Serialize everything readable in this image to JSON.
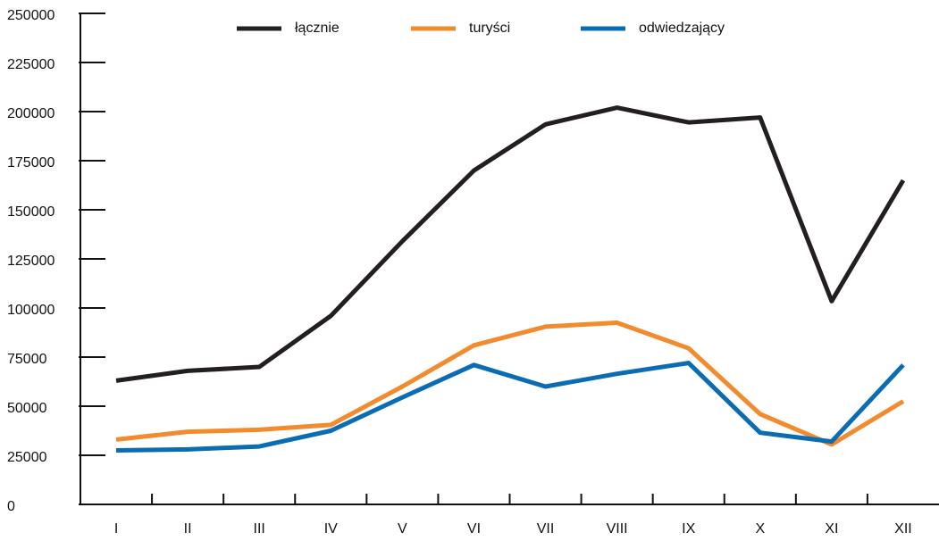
{
  "chart_data": {
    "type": "line",
    "categories": [
      "I",
      "II",
      "III",
      "IV",
      "V",
      "VI",
      "VII",
      "VIII",
      "IX",
      "X",
      "XI",
      "XII"
    ],
    "series": [
      {
        "name": "łącznie",
        "color": "#231f20",
        "values": [
          63000,
          68000,
          70000,
          96000,
          134000,
          170000,
          193500,
          202000,
          194500,
          197000,
          103500,
          165000
        ]
      },
      {
        "name": "turyści",
        "color": "#f28a2e",
        "values": [
          33000,
          37000,
          38000,
          40500,
          60000,
          81000,
          90500,
          92500,
          79500,
          46000,
          30500,
          52500
        ]
      },
      {
        "name": "odwiedzający",
        "color": "#0a6cb3",
        "values": [
          27500,
          28000,
          29500,
          37500,
          54500,
          71000,
          60000,
          66500,
          72000,
          36500,
          32000,
          71000
        ]
      }
    ],
    "ylim": [
      0,
      250000
    ],
    "yticks": [
      0,
      25000,
      50000,
      75000,
      100000,
      125000,
      150000,
      175000,
      200000,
      225000,
      250000
    ],
    "legend": "top"
  }
}
